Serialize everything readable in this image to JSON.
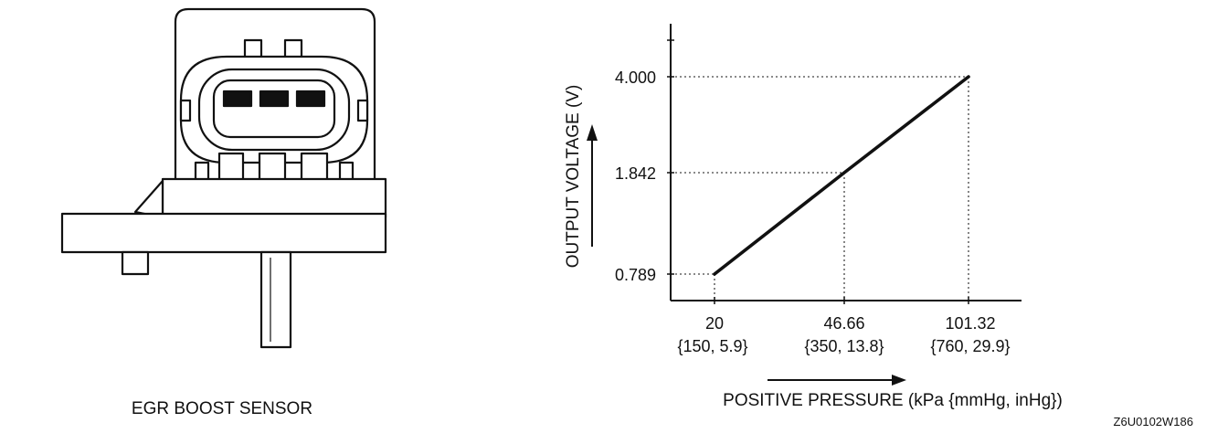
{
  "sensor": {
    "caption": "EGR BOOST SENSOR"
  },
  "graph": {
    "y_axis_label": "OUTPUT VOLTAGE (V)",
    "x_axis_label": "POSITIVE PRESSURE (kPa {mmHg, inHg})",
    "y_ticks": [
      "4.000",
      "1.842",
      "0.789"
    ],
    "x_ticks": [
      {
        "value": "20",
        "sub": "{150, 5.9}"
      },
      {
        "value": "46.66",
        "sub": "{350, 13.8}"
      },
      {
        "value": "101.32",
        "sub": "{760, 29.9}"
      }
    ]
  },
  "chart_data": {
    "type": "line",
    "x": [
      20,
      46.66,
      101.32
    ],
    "y": [
      0.789,
      1.842,
      4.0
    ],
    "xlabel": "POSITIVE PRESSURE (kPa {mmHg, inHg})",
    "ylabel": "OUTPUT VOLTAGE (V)"
  },
  "figure_code": "Z6U0102W186"
}
